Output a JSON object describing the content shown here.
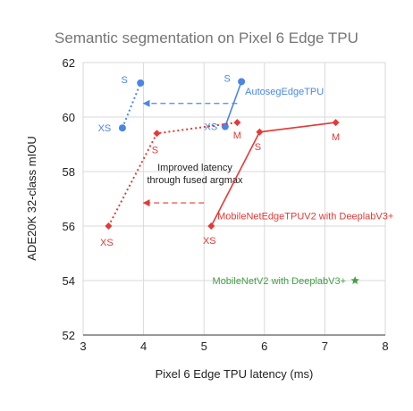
{
  "chart_data": {
    "type": "scatter",
    "title": "Semantic segmentation on Pixel 6 Edge TPU",
    "xlabel": "Pixel 6 Edge TPU latency (ms)",
    "ylabel": "ADE20K 32-class mIOU",
    "xlim": [
      3,
      8
    ],
    "ylim": [
      52,
      62
    ],
    "xticks": [
      3,
      4,
      5,
      6,
      7,
      8
    ],
    "yticks": [
      52,
      54,
      56,
      58,
      60,
      62
    ],
    "grid": true,
    "series": [
      {
        "name": "AutosegEdgeTPU",
        "color": "#4a86e8",
        "marker": "circle",
        "points": [
          {
            "x": 5.35,
            "y": 59.65,
            "label": "XS"
          },
          {
            "x": 5.62,
            "y": 61.3,
            "label": "S"
          }
        ]
      },
      {
        "name": "",
        "color": "#4a86e8",
        "marker": "circle",
        "dotted": true,
        "points": [
          {
            "x": 3.65,
            "y": 59.6,
            "label": "XS"
          },
          {
            "x": 3.95,
            "y": 61.25,
            "label": "S"
          }
        ]
      },
      {
        "name": "MobileNetEdgeTPUV2 with DeeplabV3+",
        "color": "#e53935",
        "marker": "diamond",
        "points": [
          {
            "x": 5.12,
            "y": 56.0,
            "label": "XS"
          },
          {
            "x": 5.92,
            "y": 59.45,
            "label": "S"
          },
          {
            "x": 7.18,
            "y": 59.8,
            "label": "M"
          }
        ]
      },
      {
        "name": "",
        "color": "#e53935",
        "marker": "diamond",
        "dotted": true,
        "points": [
          {
            "x": 3.42,
            "y": 56.0,
            "label": "XS"
          },
          {
            "x": 4.22,
            "y": 59.4,
            "label": "S"
          },
          {
            "x": 5.55,
            "y": 59.8,
            "label": "M"
          }
        ]
      },
      {
        "name": "MobileNetV2 with DeeplabV3+",
        "color": "#43a047",
        "marker": "star",
        "points": [
          {
            "x": 7.5,
            "y": 54.0,
            "label": ""
          }
        ]
      }
    ],
    "annotations": {
      "arrow_text_line1": "Improved latency",
      "arrow_text_line2": "through fused argmax",
      "arrows": [
        {
          "from": [
            5.55,
            60.5
          ],
          "to": [
            4.0,
            60.5
          ],
          "color": "#4a86e8"
        },
        {
          "from": [
            5.0,
            56.85
          ],
          "to": [
            4.0,
            56.85
          ],
          "color": "#e53935"
        }
      ]
    }
  }
}
